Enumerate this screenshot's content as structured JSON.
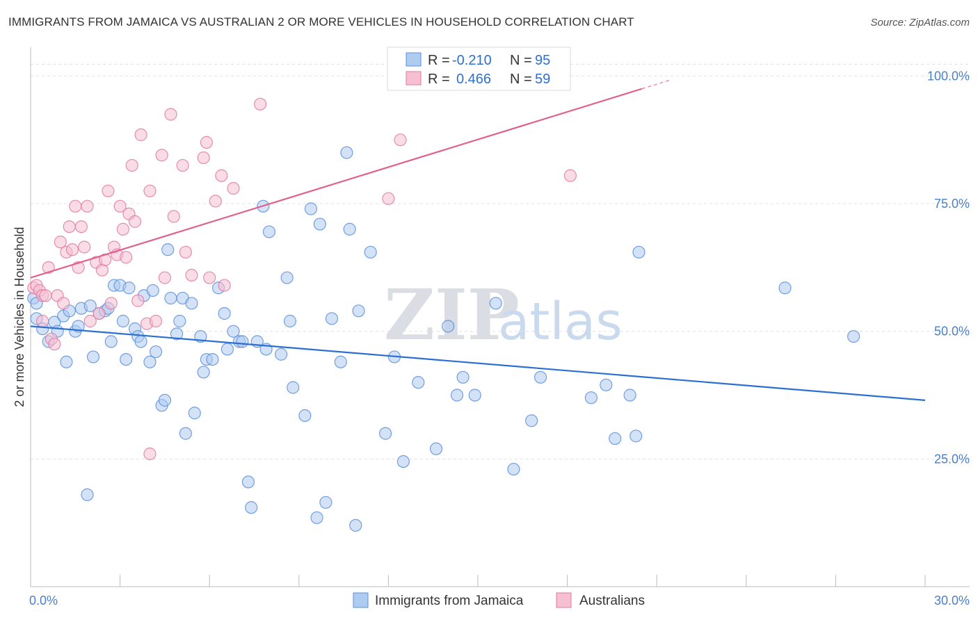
{
  "title": "IMMIGRANTS FROM JAMAICA VS AUSTRALIAN 2 OR MORE VEHICLES IN HOUSEHOLD CORRELATION CHART",
  "source": "Source: ZipAtlas.com",
  "watermark": {
    "zip": "ZIP",
    "atlas": "atlas"
  },
  "colors": {
    "blue": "#5b8fdc",
    "blue_fill": "#aecbf0",
    "pink": "#e07aa0",
    "pink_fill": "#f6bfd2",
    "blue_line": "#2a6fd1",
    "pink_line": "#e0608e"
  },
  "legend": {
    "rows": [
      {
        "r_label": "R =",
        "r_value": "-0.210",
        "n_label": "N =",
        "n_value": "95"
      },
      {
        "r_label": "R =",
        "r_value": "0.466",
        "n_label": "N =",
        "n_value": "59"
      }
    ]
  },
  "bottom_legend": [
    "Immigrants from Jamaica",
    "Australians"
  ],
  "chart_data": {
    "type": "scatter",
    "xlabel": "",
    "ylabel": "2 or more Vehicles in Household",
    "xlim": [
      0,
      30
    ],
    "ylim": [
      0,
      104
    ],
    "x_tick_labels": [
      "0.0%",
      "30.0%"
    ],
    "y_ticks": [
      25,
      50,
      75,
      100
    ],
    "y_tick_labels": [
      "25.0%",
      "50.0%",
      "75.0%",
      "100.0%"
    ],
    "series": [
      {
        "name": "Immigrants from Jamaica",
        "color": "#5b8fdc",
        "trend": {
          "x": [
            0,
            30
          ],
          "y": [
            51.0,
            36.5
          ]
        },
        "points": [
          [
            0.1,
            56.5
          ],
          [
            0.2,
            55.5
          ],
          [
            0.2,
            52.5
          ],
          [
            0.4,
            50.5
          ],
          [
            0.6,
            48.0
          ],
          [
            0.8,
            51.8
          ],
          [
            0.9,
            50.0
          ],
          [
            1.1,
            53.0
          ],
          [
            1.2,
            44.0
          ],
          [
            1.3,
            54.0
          ],
          [
            1.5,
            50.0
          ],
          [
            1.6,
            51.0
          ],
          [
            1.7,
            54.5
          ],
          [
            1.9,
            18.0
          ],
          [
            2.0,
            55.0
          ],
          [
            2.1,
            45.0
          ],
          [
            2.3,
            53.5
          ],
          [
            2.5,
            54.0
          ],
          [
            2.6,
            54.5
          ],
          [
            2.7,
            48.0
          ],
          [
            2.8,
            59.0
          ],
          [
            3.0,
            59.0
          ],
          [
            3.1,
            52.0
          ],
          [
            3.2,
            44.5
          ],
          [
            3.3,
            58.5
          ],
          [
            3.5,
            50.5
          ],
          [
            3.6,
            49.0
          ],
          [
            3.7,
            48.0
          ],
          [
            3.8,
            57.0
          ],
          [
            4.0,
            44.0
          ],
          [
            4.1,
            58.0
          ],
          [
            4.2,
            46.0
          ],
          [
            4.4,
            35.5
          ],
          [
            4.5,
            36.5
          ],
          [
            4.6,
            66.0
          ],
          [
            4.7,
            56.5
          ],
          [
            4.9,
            49.5
          ],
          [
            5.0,
            52.0
          ],
          [
            5.1,
            56.5
          ],
          [
            5.2,
            30.0
          ],
          [
            5.4,
            55.5
          ],
          [
            5.5,
            34.0
          ],
          [
            5.7,
            49.0
          ],
          [
            5.8,
            42.0
          ],
          [
            5.9,
            44.5
          ],
          [
            6.1,
            44.5
          ],
          [
            6.3,
            58.5
          ],
          [
            6.5,
            53.5
          ],
          [
            6.6,
            46.5
          ],
          [
            6.8,
            50.0
          ],
          [
            7.0,
            48.0
          ],
          [
            7.1,
            48.0
          ],
          [
            7.3,
            20.5
          ],
          [
            7.4,
            15.5
          ],
          [
            7.6,
            48.0
          ],
          [
            7.8,
            74.5
          ],
          [
            7.9,
            46.5
          ],
          [
            8.0,
            69.5
          ],
          [
            8.4,
            45.5
          ],
          [
            8.6,
            60.5
          ],
          [
            8.7,
            52.0
          ],
          [
            8.8,
            39.0
          ],
          [
            9.2,
            33.5
          ],
          [
            9.4,
            74.0
          ],
          [
            9.6,
            13.5
          ],
          [
            9.7,
            71.0
          ],
          [
            9.9,
            16.5
          ],
          [
            10.1,
            52.5
          ],
          [
            10.4,
            44.0
          ],
          [
            10.6,
            85.0
          ],
          [
            10.7,
            70.0
          ],
          [
            10.9,
            12.0
          ],
          [
            11.0,
            54.0
          ],
          [
            11.4,
            65.5
          ],
          [
            11.9,
            30.0
          ],
          [
            12.2,
            45.0
          ],
          [
            12.5,
            24.5
          ],
          [
            13.0,
            40.0
          ],
          [
            13.6,
            27.0
          ],
          [
            14.0,
            51.0
          ],
          [
            14.3,
            37.5
          ],
          [
            14.5,
            41.0
          ],
          [
            14.9,
            37.5
          ],
          [
            15.6,
            55.5
          ],
          [
            16.2,
            23.0
          ],
          [
            16.8,
            32.5
          ],
          [
            17.1,
            41.0
          ],
          [
            18.8,
            37.0
          ],
          [
            19.3,
            39.5
          ],
          [
            19.6,
            29.0
          ],
          [
            20.1,
            37.5
          ],
          [
            20.3,
            29.5
          ],
          [
            20.4,
            65.5
          ],
          [
            25.3,
            58.5
          ],
          [
            27.6,
            49.0
          ]
        ]
      },
      {
        "name": "Australians",
        "color": "#e07aa0",
        "trend": {
          "x": [
            0,
            20.5
          ],
          "y": [
            60.5,
            97.5
          ]
        },
        "points": [
          [
            0.1,
            58.5
          ],
          [
            0.2,
            59.0
          ],
          [
            0.3,
            58.0
          ],
          [
            0.4,
            57.0
          ],
          [
            0.4,
            52.0
          ],
          [
            0.5,
            57.0
          ],
          [
            0.6,
            62.5
          ],
          [
            0.7,
            48.5
          ],
          [
            0.8,
            47.5
          ],
          [
            0.9,
            57.0
          ],
          [
            1.0,
            67.5
          ],
          [
            1.1,
            55.5
          ],
          [
            1.2,
            65.5
          ],
          [
            1.3,
            70.5
          ],
          [
            1.4,
            66.0
          ],
          [
            1.5,
            74.5
          ],
          [
            1.6,
            62.5
          ],
          [
            1.7,
            70.5
          ],
          [
            1.8,
            66.5
          ],
          [
            1.9,
            74.5
          ],
          [
            2.0,
            52.0
          ],
          [
            2.2,
            63.5
          ],
          [
            2.3,
            53.5
          ],
          [
            2.4,
            62.0
          ],
          [
            2.5,
            64.0
          ],
          [
            2.6,
            77.5
          ],
          [
            2.7,
            55.5
          ],
          [
            2.8,
            66.5
          ],
          [
            2.9,
            65.0
          ],
          [
            3.0,
            74.5
          ],
          [
            3.1,
            70.0
          ],
          [
            3.2,
            64.5
          ],
          [
            3.3,
            73.0
          ],
          [
            3.4,
            82.5
          ],
          [
            3.5,
            71.5
          ],
          [
            3.6,
            56.0
          ],
          [
            3.7,
            88.5
          ],
          [
            3.9,
            51.5
          ],
          [
            4.0,
            77.5
          ],
          [
            4.0,
            26.0
          ],
          [
            4.2,
            52.0
          ],
          [
            4.4,
            84.5
          ],
          [
            4.5,
            60.5
          ],
          [
            4.7,
            92.5
          ],
          [
            4.8,
            72.5
          ],
          [
            5.1,
            82.5
          ],
          [
            5.2,
            65.5
          ],
          [
            5.4,
            61.0
          ],
          [
            5.8,
            84.0
          ],
          [
            5.9,
            87.0
          ],
          [
            6.0,
            60.5
          ],
          [
            6.2,
            75.5
          ],
          [
            6.4,
            80.5
          ],
          [
            6.5,
            59.0
          ],
          [
            6.8,
            78.0
          ],
          [
            7.7,
            94.5
          ],
          [
            12.0,
            76.0
          ],
          [
            12.4,
            87.5
          ],
          [
            18.1,
            80.5
          ]
        ]
      }
    ]
  }
}
